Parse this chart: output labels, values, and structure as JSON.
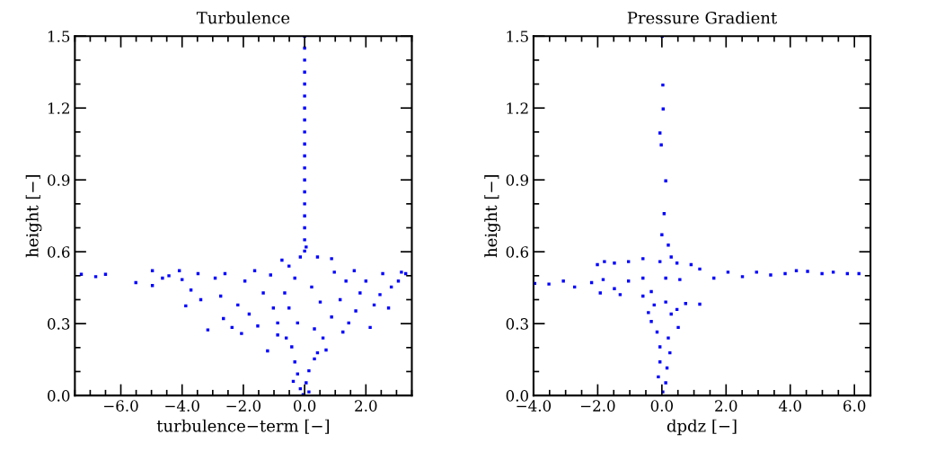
{
  "chart_data": [
    {
      "type": "scatter",
      "title": "Turbulence",
      "xlabel": "turbulence−term [−]",
      "ylabel": "height [−]",
      "marker": "square",
      "grid": false,
      "xlim": [
        -7.5,
        3.5
      ],
      "ylim": [
        0,
        1.5
      ],
      "xticks": [
        {
          "value": -7.5,
          "label": null
        },
        {
          "value": -7.0,
          "label": null
        },
        {
          "value": -6.5,
          "label": null
        },
        {
          "value": -6.0,
          "label": "−6.0"
        },
        {
          "value": -5.5,
          "label": null
        },
        {
          "value": -5.0,
          "label": null
        },
        {
          "value": -4.5,
          "label": null
        },
        {
          "value": -4.0,
          "label": "−4.0"
        },
        {
          "value": -3.5,
          "label": null
        },
        {
          "value": -3.0,
          "label": null
        },
        {
          "value": -2.5,
          "label": null
        },
        {
          "value": -2.0,
          "label": "−2.0"
        },
        {
          "value": -1.5,
          "label": null
        },
        {
          "value": -1.0,
          "label": null
        },
        {
          "value": -0.5,
          "label": null
        },
        {
          "value": 0,
          "label": "0.0"
        },
        {
          "value": 0.5,
          "label": null
        },
        {
          "value": 1.0,
          "label": null
        },
        {
          "value": 1.5,
          "label": null
        },
        {
          "value": 2.0,
          "label": "2.0"
        },
        {
          "value": 2.5,
          "label": null
        },
        {
          "value": 3.0,
          "label": null
        },
        {
          "value": 3.5,
          "label": null
        }
      ],
      "yticks": [
        {
          "value": 0,
          "label": "0.0"
        },
        {
          "value": 0.1,
          "label": null
        },
        {
          "value": 0.2,
          "label": null
        },
        {
          "value": 0.3,
          "label": "0.3"
        },
        {
          "value": 0.4,
          "label": null
        },
        {
          "value": 0.5,
          "label": null
        },
        {
          "value": 0.6,
          "label": "0.6"
        },
        {
          "value": 0.7,
          "label": null
        },
        {
          "value": 0.8,
          "label": null
        },
        {
          "value": 0.9,
          "label": "0.9"
        },
        {
          "value": 1.0,
          "label": null
        },
        {
          "value": 1.1,
          "label": null
        },
        {
          "value": 1.2,
          "label": "1.2"
        },
        {
          "value": 1.3,
          "label": null
        },
        {
          "value": 1.4,
          "label": null
        },
        {
          "value": 1.5,
          "label": "1.5"
        }
      ],
      "series": [
        {
          "color": "#0000ff",
          "x": [
            -7.29,
            -6.82,
            -6.5,
            -5.51,
            -4.97,
            -4.97,
            -4.64,
            -4.43,
            -4.09,
            -4.0,
            -3.88,
            -3.71,
            -3.48,
            -3.39,
            -3.16,
            -2.92,
            -2.74,
            -2.6,
            -2.65,
            -2.37,
            -2.18,
            -2.06,
            -1.95,
            -1.81,
            -1.63,
            -1.53,
            -1.35,
            -1.21,
            -1.11,
            -1.02,
            -0.88,
            -0.74,
            -0.65,
            -0.6,
            0,
            0.05,
            -0.14,
            0.42,
            0.88,
            -0.51,
            -0.32,
            0.23,
            -0.51,
            -0.23,
            0.32,
            -0.88,
            0.6,
            -0.42,
            0.42,
            -0.32,
            0.32,
            -0.23,
            0.14,
            -0.37,
            0.05,
            -0.14,
            0.14,
            -0.05,
            0.97,
            1.35,
            1.62,
            1.81,
            1.44,
            1.67,
            2.14,
            2.27,
            2.55,
            2.74,
            2.83,
            3.06,
            3.3,
            3.16,
            2.46,
            2.0,
            1.16,
            0.88,
            1.25,
            0.7,
            0.51,
            0,
            0,
            0,
            0,
            0,
            0,
            0,
            0,
            0,
            0,
            0,
            0,
            0,
            0,
            0,
            0,
            0,
            0
          ],
          "values": [
            0.506,
            0.496,
            0.506,
            0.471,
            0.521,
            0.459,
            0.49,
            0.5,
            0.521,
            0.484,
            0.374,
            0.44,
            0.509,
            0.4,
            0.274,
            0.49,
            0.415,
            0.509,
            0.321,
            0.284,
            0.378,
            0.259,
            0.478,
            0.34,
            0.521,
            0.29,
            0.428,
            0.186,
            0.503,
            0.365,
            0.303,
            0.565,
            0.428,
            0.24,
            0.603,
            0.62,
            0.578,
            0.578,
            0.571,
            0.54,
            0.49,
            0.453,
            0.365,
            0.303,
            0.278,
            0.253,
            0.24,
            0.203,
            0.178,
            0.14,
            0.153,
            0.09,
            0.103,
            0.059,
            0.053,
            0.028,
            0.015,
            0.003,
            0.515,
            0.478,
            0.521,
            0.428,
            0.303,
            0.353,
            0.284,
            0.378,
            0.509,
            0.365,
            0.453,
            0.478,
            0.509,
            0.515,
            0.421,
            0.478,
            0.4,
            0.328,
            0.265,
            0.19,
            0.39,
            0.65,
            0.7,
            0.75,
            0.8,
            0.85,
            0.9,
            0.95,
            1.0,
            1.05,
            1.1,
            1.15,
            1.2,
            1.25,
            1.3,
            1.35,
            1.4,
            1.45,
            1.5
          ]
        }
      ]
    },
    {
      "type": "scatter",
      "title": "Pressure Gradient",
      "xlabel": "dpdz [−]",
      "ylabel": "height [−]",
      "marker": "square",
      "grid": false,
      "xlim": [
        -4,
        6.5
      ],
      "ylim": [
        0,
        1.5
      ],
      "xticks": [
        {
          "value": -4.0,
          "label": "−4.0"
        },
        {
          "value": -3.5,
          "label": null
        },
        {
          "value": -3.0,
          "label": null
        },
        {
          "value": -2.5,
          "label": null
        },
        {
          "value": -2.0,
          "label": "−2.0"
        },
        {
          "value": -1.5,
          "label": null
        },
        {
          "value": -1.0,
          "label": null
        },
        {
          "value": -0.5,
          "label": null
        },
        {
          "value": 0,
          "label": "0.0"
        },
        {
          "value": 0.5,
          "label": null
        },
        {
          "value": 1.0,
          "label": null
        },
        {
          "value": 1.5,
          "label": null
        },
        {
          "value": 2.0,
          "label": "2.0"
        },
        {
          "value": 2.5,
          "label": null
        },
        {
          "value": 3.0,
          "label": null
        },
        {
          "value": 3.5,
          "label": null
        },
        {
          "value": 4.0,
          "label": "4.0"
        },
        {
          "value": 4.5,
          "label": null
        },
        {
          "value": 5.0,
          "label": null
        },
        {
          "value": 5.5,
          "label": null
        },
        {
          "value": 6.0,
          "label": "6.0"
        },
        {
          "value": 6.5,
          "label": null
        }
      ],
      "yticks": [
        {
          "value": 0,
          "label": "0.0"
        },
        {
          "value": 0.1,
          "label": null
        },
        {
          "value": 0.2,
          "label": null
        },
        {
          "value": 0.3,
          "label": "0.3"
        },
        {
          "value": 0.4,
          "label": null
        },
        {
          "value": 0.5,
          "label": null
        },
        {
          "value": 0.6,
          "label": "0.6"
        },
        {
          "value": 0.7,
          "label": null
        },
        {
          "value": 0.8,
          "label": null
        },
        {
          "value": 0.9,
          "label": "0.9"
        },
        {
          "value": 1.0,
          "label": null
        },
        {
          "value": 1.1,
          "label": null
        },
        {
          "value": 1.2,
          "label": "1.2"
        },
        {
          "value": 1.3,
          "label": null
        },
        {
          "value": 1.4,
          "label": null
        },
        {
          "value": 1.5,
          "label": "1.5"
        }
      ],
      "series": [
        {
          "color": "#0000ff",
          "x": [
            6.14,
            5.78,
            5.34,
            4.99,
            4.54,
            4.19,
            3.84,
            3.39,
            2.95,
            2.51,
            2.06,
            1.62,
            1.18,
            0.91,
            0.47,
            0.29,
            -0.06,
            -0.59,
            -1.04,
            -1.48,
            -1.79,
            -2.01,
            -3.96,
            -3.52,
            -3.07,
            -2.72,
            -2.19,
            -1.83,
            -1.48,
            -1.04,
            -0.59,
            0.12,
            0.56,
            -1.92,
            -1.3,
            -0.59,
            -0.33,
            0.12,
            0.74,
            1.18,
            0.47,
            -0.24,
            -0.42,
            0.29,
            -0.33,
            0.51,
            -0.15,
            0.2,
            -0.06,
            0.25,
            -0.06,
            0.16,
            -0.11,
            0.12,
            0.03,
            0.2,
            0.07,
            0.0,
            0.12,
            -0.02,
            -0.06,
            0.04,
            0.03,
            0.01
          ],
          "values": [
            0.509,
            0.509,
            0.515,
            0.509,
            0.518,
            0.521,
            0.509,
            0.503,
            0.515,
            0.496,
            0.515,
            0.49,
            0.528,
            0.546,
            0.553,
            0.578,
            0.559,
            0.571,
            0.559,
            0.553,
            0.559,
            0.546,
            0.468,
            0.465,
            0.478,
            0.453,
            0.471,
            0.484,
            0.446,
            0.478,
            0.49,
            0.49,
            0.484,
            0.428,
            0.421,
            0.415,
            0.434,
            0.39,
            0.384,
            0.381,
            0.359,
            0.378,
            0.346,
            0.34,
            0.309,
            0.284,
            0.265,
            0.24,
            0.203,
            0.178,
            0.14,
            0.115,
            0.078,
            0.053,
            0.015,
            0.628,
            0.759,
            0.671,
            0.896,
            1.046,
            1.096,
            1.196,
            1.296,
            1.5
          ]
        }
      ]
    }
  ]
}
